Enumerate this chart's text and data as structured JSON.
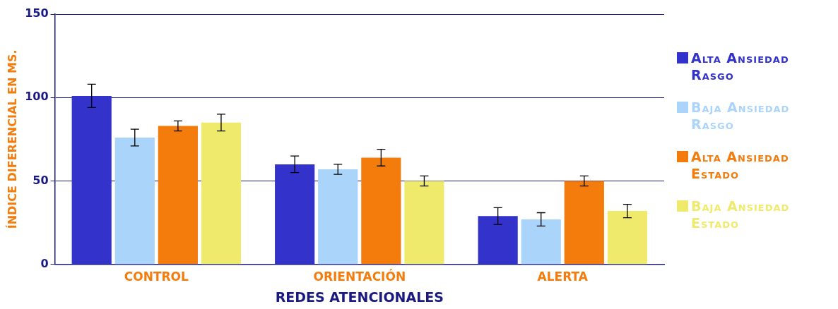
{
  "chart_data": {
    "type": "bar",
    "xlabel": "REDES ATENCIONALES",
    "ylabel": "ÍNDICE DIFERENCIAL EN MS.",
    "categories": [
      "CONTROL",
      "ORIENTACIÓN",
      "ALERTA"
    ],
    "series": [
      {
        "name": "Alta Ansiedad Rasgo",
        "color": "#3333cc",
        "values": [
          101,
          60,
          29
        ],
        "errors": [
          7,
          5,
          5
        ]
      },
      {
        "name": "Baja Ansiedad Rasgo",
        "color": "#aad4fa",
        "values": [
          76,
          57,
          27
        ],
        "errors": [
          5,
          3,
          4
        ]
      },
      {
        "name": "Alta Ansiedad Estado",
        "color": "#f47c0c",
        "values": [
          83,
          64,
          50
        ],
        "errors": [
          3,
          5,
          3
        ]
      },
      {
        "name": "Baja Ansiedad Estado",
        "color": "#f0ea6c",
        "values": [
          85,
          50,
          32
        ],
        "errors": [
          5,
          3,
          4
        ]
      }
    ],
    "ylim": [
      0,
      150
    ],
    "yticks": [
      0,
      50,
      100,
      150
    ],
    "grid": "y",
    "legend": "right"
  }
}
